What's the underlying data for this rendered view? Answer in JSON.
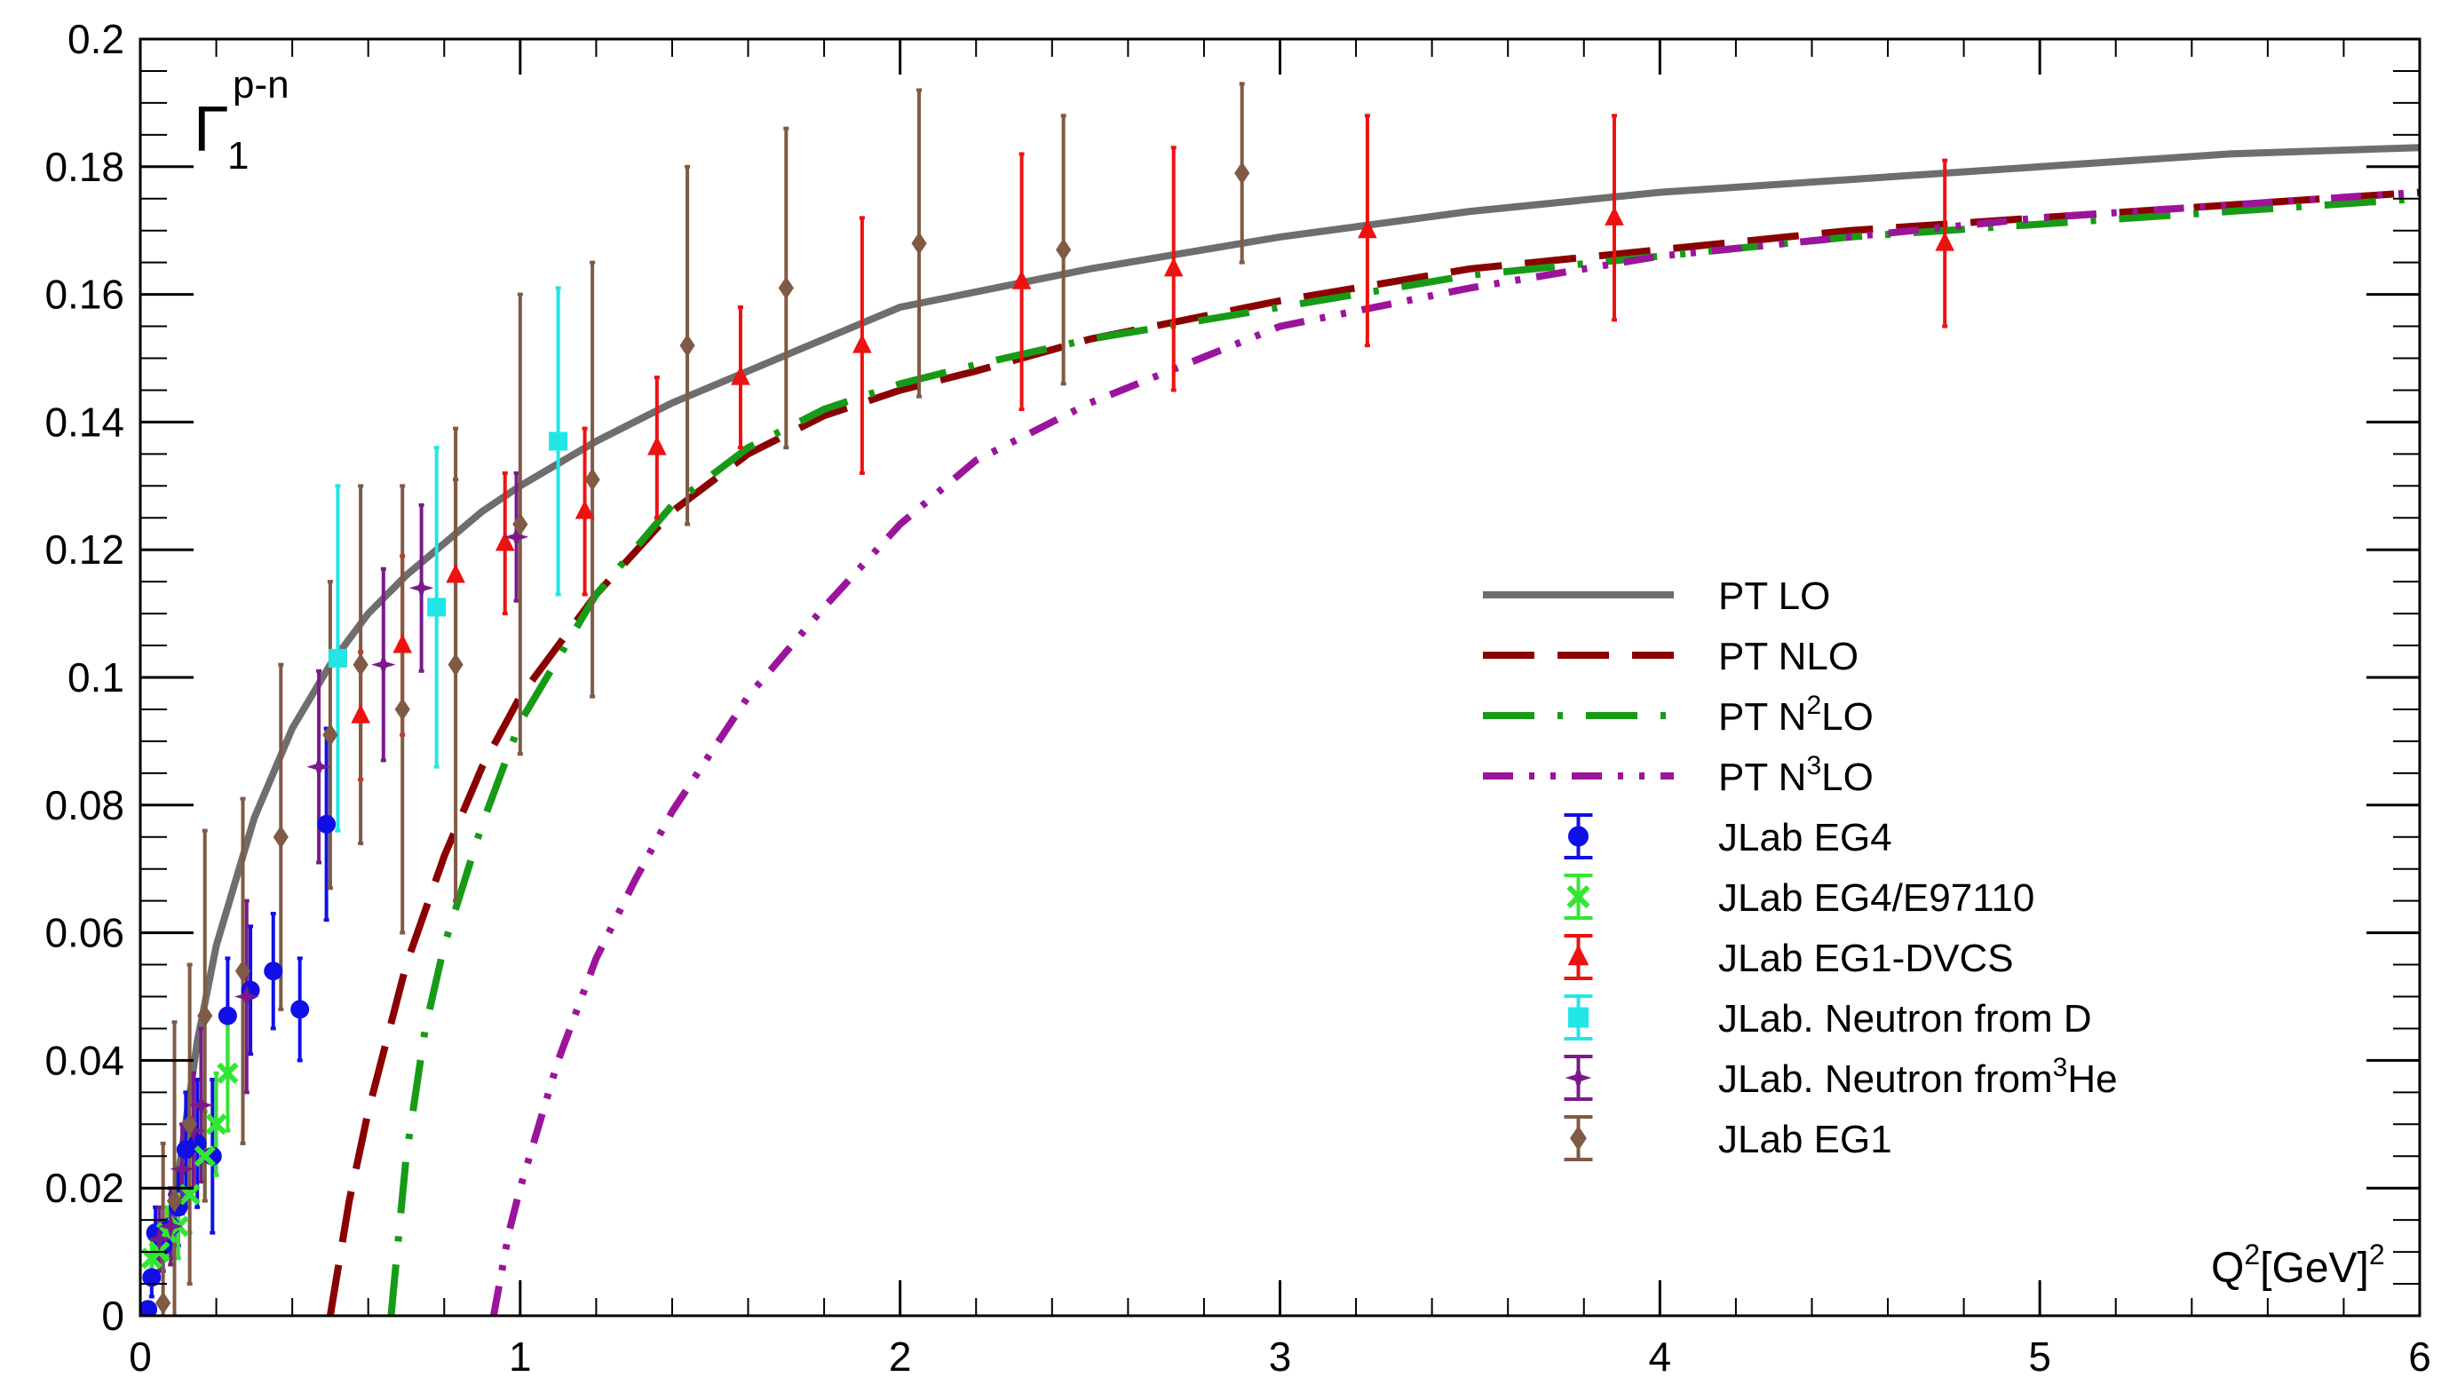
{
  "chart_data": {
    "type": "scatter",
    "title_symbol": "Γ",
    "title_sub": "1",
    "title_sup": "p-n",
    "xlabel": {
      "base": "Q",
      "sup1": "2",
      "mid": "[GeV]",
      "sup2": "2"
    },
    "ylabel": "",
    "xlim": [
      0,
      6
    ],
    "ylim": [
      0,
      0.2
    ],
    "x_ticks": [
      "0",
      "1",
      "2",
      "3",
      "4",
      "5",
      "6"
    ],
    "x_tick_values": [
      0,
      1,
      2,
      3,
      4,
      5,
      6
    ],
    "y_ticks": [
      "0",
      "0.02",
      "0.04",
      "0.06",
      "0.08",
      "0.1",
      "0.12",
      "0.14",
      "0.16",
      "0.18",
      "0.2"
    ],
    "y_tick_values": [
      0,
      0.02,
      0.04,
      0.06,
      0.08,
      0.1,
      0.12,
      0.14,
      0.16,
      0.18,
      0.2
    ],
    "grid": false,
    "legend_position": "right-center",
    "curves": [
      {
        "name": "PT LO",
        "color": "#6e6e6e",
        "style": "solid",
        "points": [
          [
            0.08,
            0.011
          ],
          [
            0.1,
            0.022
          ],
          [
            0.15,
            0.043
          ],
          [
            0.2,
            0.058
          ],
          [
            0.3,
            0.078
          ],
          [
            0.4,
            0.092
          ],
          [
            0.5,
            0.102
          ],
          [
            0.6,
            0.11
          ],
          [
            0.7,
            0.116
          ],
          [
            0.8,
            0.121
          ],
          [
            0.9,
            0.126
          ],
          [
            1.0,
            0.13
          ],
          [
            1.2,
            0.137
          ],
          [
            1.4,
            0.143
          ],
          [
            1.6,
            0.148
          ],
          [
            1.8,
            0.153
          ],
          [
            2.0,
            0.158
          ],
          [
            2.5,
            0.164
          ],
          [
            3.0,
            0.169
          ],
          [
            3.5,
            0.173
          ],
          [
            4.0,
            0.176
          ],
          [
            4.5,
            0.178
          ],
          [
            5.0,
            0.18
          ],
          [
            5.5,
            0.182
          ],
          [
            6.0,
            0.183
          ]
        ]
      },
      {
        "name": "PT NLO",
        "color": "#8b0000",
        "style": "dash",
        "points": [
          [
            0.5,
            0.0
          ],
          [
            0.55,
            0.018
          ],
          [
            0.6,
            0.032
          ],
          [
            0.7,
            0.055
          ],
          [
            0.8,
            0.072
          ],
          [
            0.9,
            0.086
          ],
          [
            1.0,
            0.097
          ],
          [
            1.2,
            0.113
          ],
          [
            1.4,
            0.126
          ],
          [
            1.6,
            0.135
          ],
          [
            1.8,
            0.141
          ],
          [
            2.0,
            0.145
          ],
          [
            2.2,
            0.148
          ],
          [
            2.5,
            0.153
          ],
          [
            3.0,
            0.159
          ],
          [
            3.5,
            0.164
          ],
          [
            4.0,
            0.167
          ],
          [
            4.5,
            0.17
          ],
          [
            5.0,
            0.172
          ],
          [
            5.5,
            0.174
          ],
          [
            6.0,
            0.176
          ]
        ]
      },
      {
        "name": "PT N",
        "name_sup": "2",
        "name_tail": "LO",
        "color": "#179b17",
        "style": "dashdot",
        "points": [
          [
            0.66,
            0.0
          ],
          [
            0.7,
            0.025
          ],
          [
            0.75,
            0.045
          ],
          [
            0.8,
            0.058
          ],
          [
            0.9,
            0.077
          ],
          [
            1.0,
            0.093
          ],
          [
            1.2,
            0.113
          ],
          [
            1.4,
            0.127
          ],
          [
            1.6,
            0.136
          ],
          [
            1.8,
            0.142
          ],
          [
            2.0,
            0.146
          ],
          [
            2.2,
            0.149
          ],
          [
            2.5,
            0.153
          ],
          [
            3.0,
            0.158
          ],
          [
            3.5,
            0.163
          ],
          [
            4.0,
            0.166
          ],
          [
            4.5,
            0.169
          ],
          [
            5.0,
            0.171
          ],
          [
            5.5,
            0.173
          ],
          [
            6.0,
            0.175
          ]
        ]
      },
      {
        "name": "PT N",
        "name_sup": "3",
        "name_tail": "LO",
        "color": "#9b149b",
        "style": "dashdotdot",
        "points": [
          [
            0.93,
            0.0
          ],
          [
            0.97,
            0.013
          ],
          [
            1.0,
            0.02
          ],
          [
            1.1,
            0.04
          ],
          [
            1.2,
            0.056
          ],
          [
            1.3,
            0.068
          ],
          [
            1.4,
            0.079
          ],
          [
            1.6,
            0.097
          ],
          [
            1.8,
            0.111
          ],
          [
            2.0,
            0.124
          ],
          [
            2.2,
            0.134
          ],
          [
            2.5,
            0.143
          ],
          [
            3.0,
            0.155
          ],
          [
            3.5,
            0.161
          ],
          [
            4.0,
            0.166
          ],
          [
            4.5,
            0.169
          ],
          [
            5.0,
            0.172
          ],
          [
            5.5,
            0.174
          ],
          [
            6.0,
            0.176
          ]
        ]
      }
    ],
    "series": [
      {
        "name": "JLab EG4",
        "color": "#1010e6",
        "marker": "circle",
        "points": [
          [
            0.02,
            0.001,
            0.001
          ],
          [
            0.03,
            0.006,
            0.003
          ],
          [
            0.04,
            0.013,
            0.004
          ],
          [
            0.06,
            0.011,
            0.004
          ],
          [
            0.08,
            0.014,
            0.005
          ],
          [
            0.1,
            0.017,
            0.006
          ],
          [
            0.12,
            0.026,
            0.009
          ],
          [
            0.15,
            0.027,
            0.01
          ],
          [
            0.19,
            0.025,
            0.012
          ],
          [
            0.23,
            0.047,
            0.009
          ],
          [
            0.29,
            0.051,
            0.01
          ],
          [
            0.35,
            0.054,
            0.009
          ],
          [
            0.42,
            0.048,
            0.008
          ],
          [
            0.49,
            0.077,
            0.015
          ]
        ]
      },
      {
        "name": "JLab EG4/E97110",
        "color": "#33e633",
        "marker": "cross",
        "points": [
          [
            0.03,
            0.009,
            0.003
          ],
          [
            0.05,
            0.01,
            0.003
          ],
          [
            0.07,
            0.013,
            0.004
          ],
          [
            0.1,
            0.014,
            0.005
          ],
          [
            0.13,
            0.019,
            0.006
          ],
          [
            0.17,
            0.025,
            0.007
          ],
          [
            0.2,
            0.03,
            0.008
          ],
          [
            0.23,
            0.038,
            0.009
          ]
        ]
      },
      {
        "name": "JLab EG1-DVCS",
        "color": "#ee1111",
        "marker": "triangle",
        "points": [
          [
            0.58,
            0.094,
            0.01
          ],
          [
            0.69,
            0.105,
            0.014
          ],
          [
            0.83,
            0.116,
            0.015
          ],
          [
            0.96,
            0.121,
            0.011
          ],
          [
            1.17,
            0.126,
            0.013
          ],
          [
            1.36,
            0.136,
            0.011
          ],
          [
            1.58,
            0.147,
            0.011
          ],
          [
            1.9,
            0.152,
            0.02
          ],
          [
            2.32,
            0.162,
            0.02
          ],
          [
            2.72,
            0.164,
            0.019
          ],
          [
            3.23,
            0.17,
            0.018
          ],
          [
            3.88,
            0.172,
            0.016
          ],
          [
            4.75,
            0.168,
            0.013
          ]
        ]
      },
      {
        "name": "JLab. Neutron from D",
        "color": "#22e6e6",
        "marker": "square",
        "points": [
          [
            0.52,
            0.103,
            0.027
          ],
          [
            0.78,
            0.111,
            0.025
          ],
          [
            1.1,
            0.137,
            0.024
          ]
        ]
      },
      {
        "name": "JLab. Neutron from",
        "name_sup": "3",
        "name_tail": "He",
        "color": "#7a1a8a",
        "marker": "star",
        "points": [
          [
            0.05,
            0.012,
            0.005
          ],
          [
            0.08,
            0.014,
            0.006
          ],
          [
            0.11,
            0.023,
            0.007
          ],
          [
            0.14,
            0.029,
            0.009
          ],
          [
            0.16,
            0.033,
            0.012
          ],
          [
            0.28,
            0.05,
            0.015
          ],
          [
            0.47,
            0.086,
            0.015
          ],
          [
            0.64,
            0.102,
            0.015
          ],
          [
            0.74,
            0.114,
            0.013
          ],
          [
            0.99,
            0.122,
            0.01
          ]
        ]
      },
      {
        "name": "JLab EG1",
        "color": "#7f5a44",
        "marker": "diamond",
        "points": [
          [
            0.06,
            0.002,
            0.025
          ],
          [
            0.09,
            0.018,
            0.028
          ],
          [
            0.13,
            0.03,
            0.025
          ],
          [
            0.17,
            0.047,
            0.029
          ],
          [
            0.27,
            0.054,
            0.027
          ],
          [
            0.37,
            0.075,
            0.027
          ],
          [
            0.5,
            0.091,
            0.024
          ],
          [
            0.58,
            0.102,
            0.028
          ],
          [
            0.69,
            0.095,
            0.035
          ],
          [
            0.83,
            0.102,
            0.037
          ],
          [
            1.0,
            0.124,
            0.036
          ],
          [
            1.19,
            0.131,
            0.034
          ],
          [
            1.44,
            0.152,
            0.028
          ],
          [
            1.7,
            0.161,
            0.025
          ],
          [
            2.05,
            0.168,
            0.024
          ],
          [
            2.43,
            0.167,
            0.021
          ],
          [
            2.9,
            0.179,
            0.014
          ]
        ]
      }
    ]
  }
}
